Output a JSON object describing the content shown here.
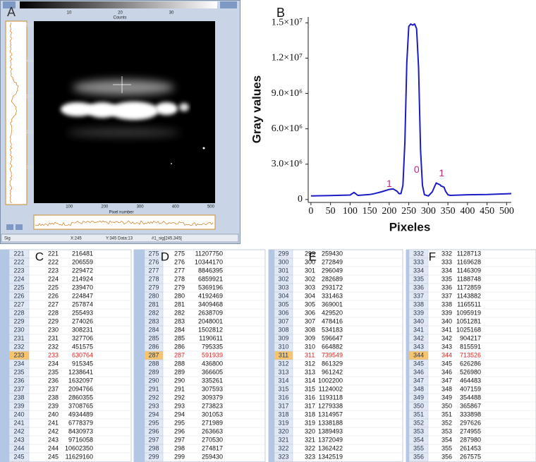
{
  "chart_data": {
    "type": "line",
    "label": "B",
    "x_label": "Pixeles",
    "y_label": "Gray values",
    "x": [
      0,
      50,
      100,
      110,
      120,
      150,
      160,
      180,
      200,
      210,
      220,
      225,
      230,
      235,
      240,
      245,
      250,
      255,
      260,
      265,
      270,
      275,
      280,
      285,
      290,
      300,
      310,
      320,
      323,
      330,
      332,
      340,
      344,
      350,
      356,
      400,
      450,
      512
    ],
    "values": [
      300000,
      330000,
      380000,
      600000,
      350000,
      420000,
      480000,
      650000,
      850000,
      900000,
      700000,
      500000,
      500000,
      1200000,
      4900000,
      11600000,
      14700000,
      14900000,
      14800000,
      14900000,
      14500000,
      11200000,
      4200000,
      1200000,
      400000,
      300000,
      650000,
      1400000,
      1350000,
      1250000,
      1150000,
      1050000,
      700000,
      400000,
      350000,
      400000,
      420000,
      500000
    ],
    "color": "#1c1cc4",
    "xlim": [
      -7,
      512
    ],
    "xticks": [
      0,
      50,
      100,
      150,
      200,
      250,
      300,
      350,
      400,
      450,
      500
    ],
    "ylim": [
      -250000,
      15500000
    ],
    "yticks": [
      0,
      {
        "value": 3000000,
        "label": "3.0×10⁶"
      },
      {
        "value": 6000000,
        "label": "6.0×10⁶"
      },
      {
        "value": 9000000,
        "label": "9.0×10⁶"
      },
      {
        "value": 12000000,
        "label": "1.2×10⁷"
      },
      {
        "value": 15000000,
        "label": "1.5×10⁷"
      }
    ],
    "annotations": [
      {
        "text": "1",
        "x": 200,
        "y": 1300000
      },
      {
        "text": "0",
        "x": 270,
        "y": 2500000
      },
      {
        "text": "1",
        "x": 334,
        "y": 2200000
      }
    ],
    "annotation_color": "#c2287a"
  },
  "panel_a": {
    "label": "A",
    "colorbar_ticks": [
      10,
      20,
      30
    ],
    "colorbar_label": "Counts",
    "y_ticks": [
      500,
      400,
      300,
      200,
      100
    ],
    "x_ticks": [
      100,
      200,
      300,
      400,
      500
    ],
    "x_label": "Pixel number",
    "status": [
      "Sig",
      "X:245",
      "Y:345 Data:13",
      "#1_sig[245,345]"
    ]
  },
  "tables": [
    {
      "label": "C",
      "highlight_row": 12,
      "rows": [
        [
          221,
          216481
        ],
        [
          222,
          206559
        ],
        [
          223,
          229472
        ],
        [
          224,
          214924
        ],
        [
          225,
          239470
        ],
        [
          226,
          224847
        ],
        [
          227,
          257874
        ],
        [
          228,
          255493
        ],
        [
          229,
          274026
        ],
        [
          230,
          308231
        ],
        [
          231,
          327706
        ],
        [
          232,
          451575
        ],
        [
          233,
          630764
        ],
        [
          234,
          915345
        ],
        [
          235,
          1238641
        ],
        [
          236,
          1632097
        ],
        [
          237,
          2094766
        ],
        [
          238,
          2860355
        ],
        [
          239,
          3708765
        ],
        [
          240,
          4934489
        ],
        [
          241,
          6778379
        ],
        [
          242,
          8430973
        ],
        [
          243,
          9716058
        ],
        [
          244,
          10602350
        ],
        [
          245,
          11629160
        ]
      ]
    },
    {
      "label": "D",
      "highlight_row": 12,
      "rows": [
        [
          275,
          11207750
        ],
        [
          276,
          10344170
        ],
        [
          277,
          8846395
        ],
        [
          278,
          6859921
        ],
        [
          279,
          5369196
        ],
        [
          280,
          4192469
        ],
        [
          281,
          3409468
        ],
        [
          282,
          2638709
        ],
        [
          283,
          2048001
        ],
        [
          284,
          1502812
        ],
        [
          285,
          1190611
        ],
        [
          286,
          795335
        ],
        [
          287,
          591939
        ],
        [
          288,
          436800
        ],
        [
          289,
          366605
        ],
        [
          290,
          335261
        ],
        [
          291,
          307593
        ],
        [
          292,
          309379
        ],
        [
          293,
          273823
        ],
        [
          294,
          301053
        ],
        [
          295,
          271989
        ],
        [
          296,
          263663
        ],
        [
          297,
          270530
        ],
        [
          298,
          274817
        ],
        [
          299,
          259430
        ]
      ]
    },
    {
      "label": "E",
      "highlight_row": 12,
      "rows": [
        [
          299,
          259430
        ],
        [
          300,
          272849
        ],
        [
          301,
          296049
        ],
        [
          302,
          282689
        ],
        [
          303,
          293172
        ],
        [
          304,
          331463
        ],
        [
          305,
          369001
        ],
        [
          306,
          429520
        ],
        [
          307,
          478416
        ],
        [
          308,
          534183
        ],
        [
          309,
          596647
        ],
        [
          310,
          664882
        ],
        [
          311,
          739549
        ],
        [
          312,
          861329
        ],
        [
          313,
          961242
        ],
        [
          314,
          1002200
        ],
        [
          315,
          1124002
        ],
        [
          316,
          1193118
        ],
        [
          317,
          1279338
        ],
        [
          318,
          1314957
        ],
        [
          319,
          1338188
        ],
        [
          320,
          1389493
        ],
        [
          321,
          1372049
        ],
        [
          322,
          1362422
        ],
        [
          323,
          1342519
        ]
      ]
    },
    {
      "label": "F",
      "highlight_row": 12,
      "rows": [
        [
          332,
          1128713
        ],
        [
          333,
          1169628
        ],
        [
          334,
          1146309
        ],
        [
          335,
          1188748
        ],
        [
          336,
          1172859
        ],
        [
          337,
          1143882
        ],
        [
          338,
          1165511
        ],
        [
          339,
          1095919
        ],
        [
          340,
          1051281
        ],
        [
          341,
          1025168
        ],
        [
          342,
          904217
        ],
        [
          343,
          815591
        ],
        [
          344,
          713526
        ],
        [
          345,
          626286
        ],
        [
          346,
          526980
        ],
        [
          347,
          464483
        ],
        [
          348,
          407159
        ],
        [
          349,
          354488
        ],
        [
          350,
          365867
        ],
        [
          351,
          333898
        ],
        [
          352,
          297626
        ],
        [
          353,
          274955
        ],
        [
          354,
          287980
        ],
        [
          355,
          261453
        ],
        [
          356,
          267575
        ]
      ]
    }
  ]
}
